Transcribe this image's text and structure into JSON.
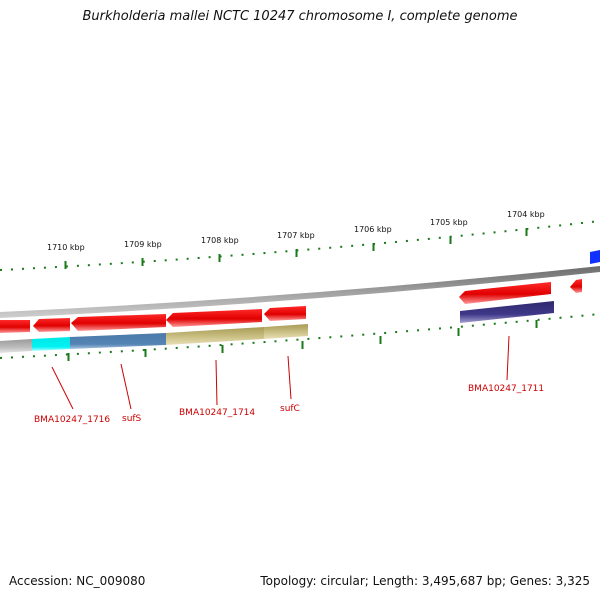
{
  "title": "Burkholderia mallei NCTC 10247 chromosome I, complete genome",
  "footer": {
    "accession": "Accession: NC_009080",
    "summary": "Topology: circular; Length: 3,495,687 bp; Genes: 3,325"
  },
  "ticks": [
    "1710 kbp",
    "1709 kbp",
    "1708 kbp",
    "1707 kbp",
    "1706 kbp",
    "1705 kbp",
    "1704 kbp"
  ],
  "genes": [
    {
      "name": "BMA10247_1716"
    },
    {
      "name": "sufS"
    },
    {
      "name": "BMA10247_1714"
    },
    {
      "name": "sufC"
    },
    {
      "name": "BMA10247_1711"
    }
  ],
  "colors": {
    "forward_gene": "#ee0000",
    "backbone": "#808080",
    "tick": "#1a7a1a",
    "label": "#cc0000",
    "cog_cyan": "#00e6e6",
    "cog_steelblue": "#4f7fae",
    "cog_khaki": "#c2b677",
    "cog_navy": "#3b3580",
    "cog_grey": "#b9b9b9",
    "edge_blue": "#1030ff"
  }
}
